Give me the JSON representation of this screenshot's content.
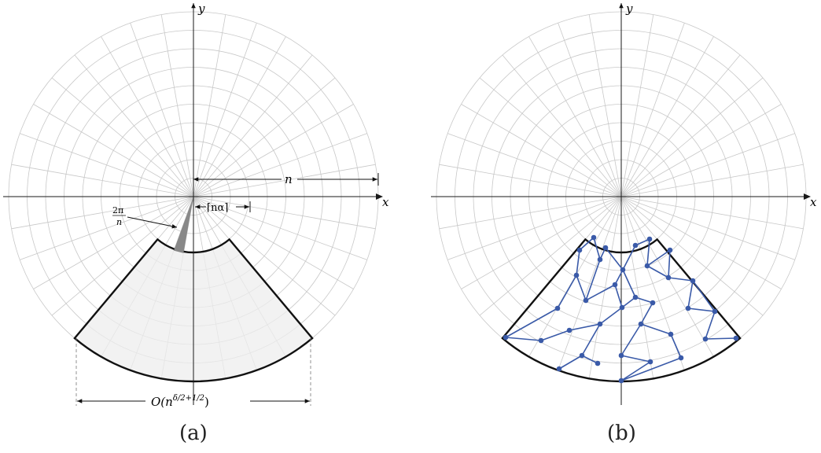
{
  "diagram": {
    "panels": [
      {
        "id": "a",
        "caption": "(a)",
        "axes": {
          "x_label": "x",
          "y_label": "y"
        },
        "annotations": {
          "radius_label": "n",
          "angle_label_num": "2π",
          "angle_label_den": "n",
          "inner_radius_label": "⌈nα⌉",
          "width_label_main": "O(n",
          "width_label_sup": "δ/2+1/2",
          "width_label_close": ")"
        }
      },
      {
        "id": "b",
        "caption": "(b)",
        "axes": {
          "x_label": "x",
          "y_label": "y"
        }
      }
    ],
    "colors": {
      "grid": "#c8c8c8",
      "axis": "#1a1a1a",
      "sector_fill": "#ededed",
      "wedge_fill": "#888888",
      "graph": "#3a5aa8",
      "outline": "#111111"
    }
  }
}
